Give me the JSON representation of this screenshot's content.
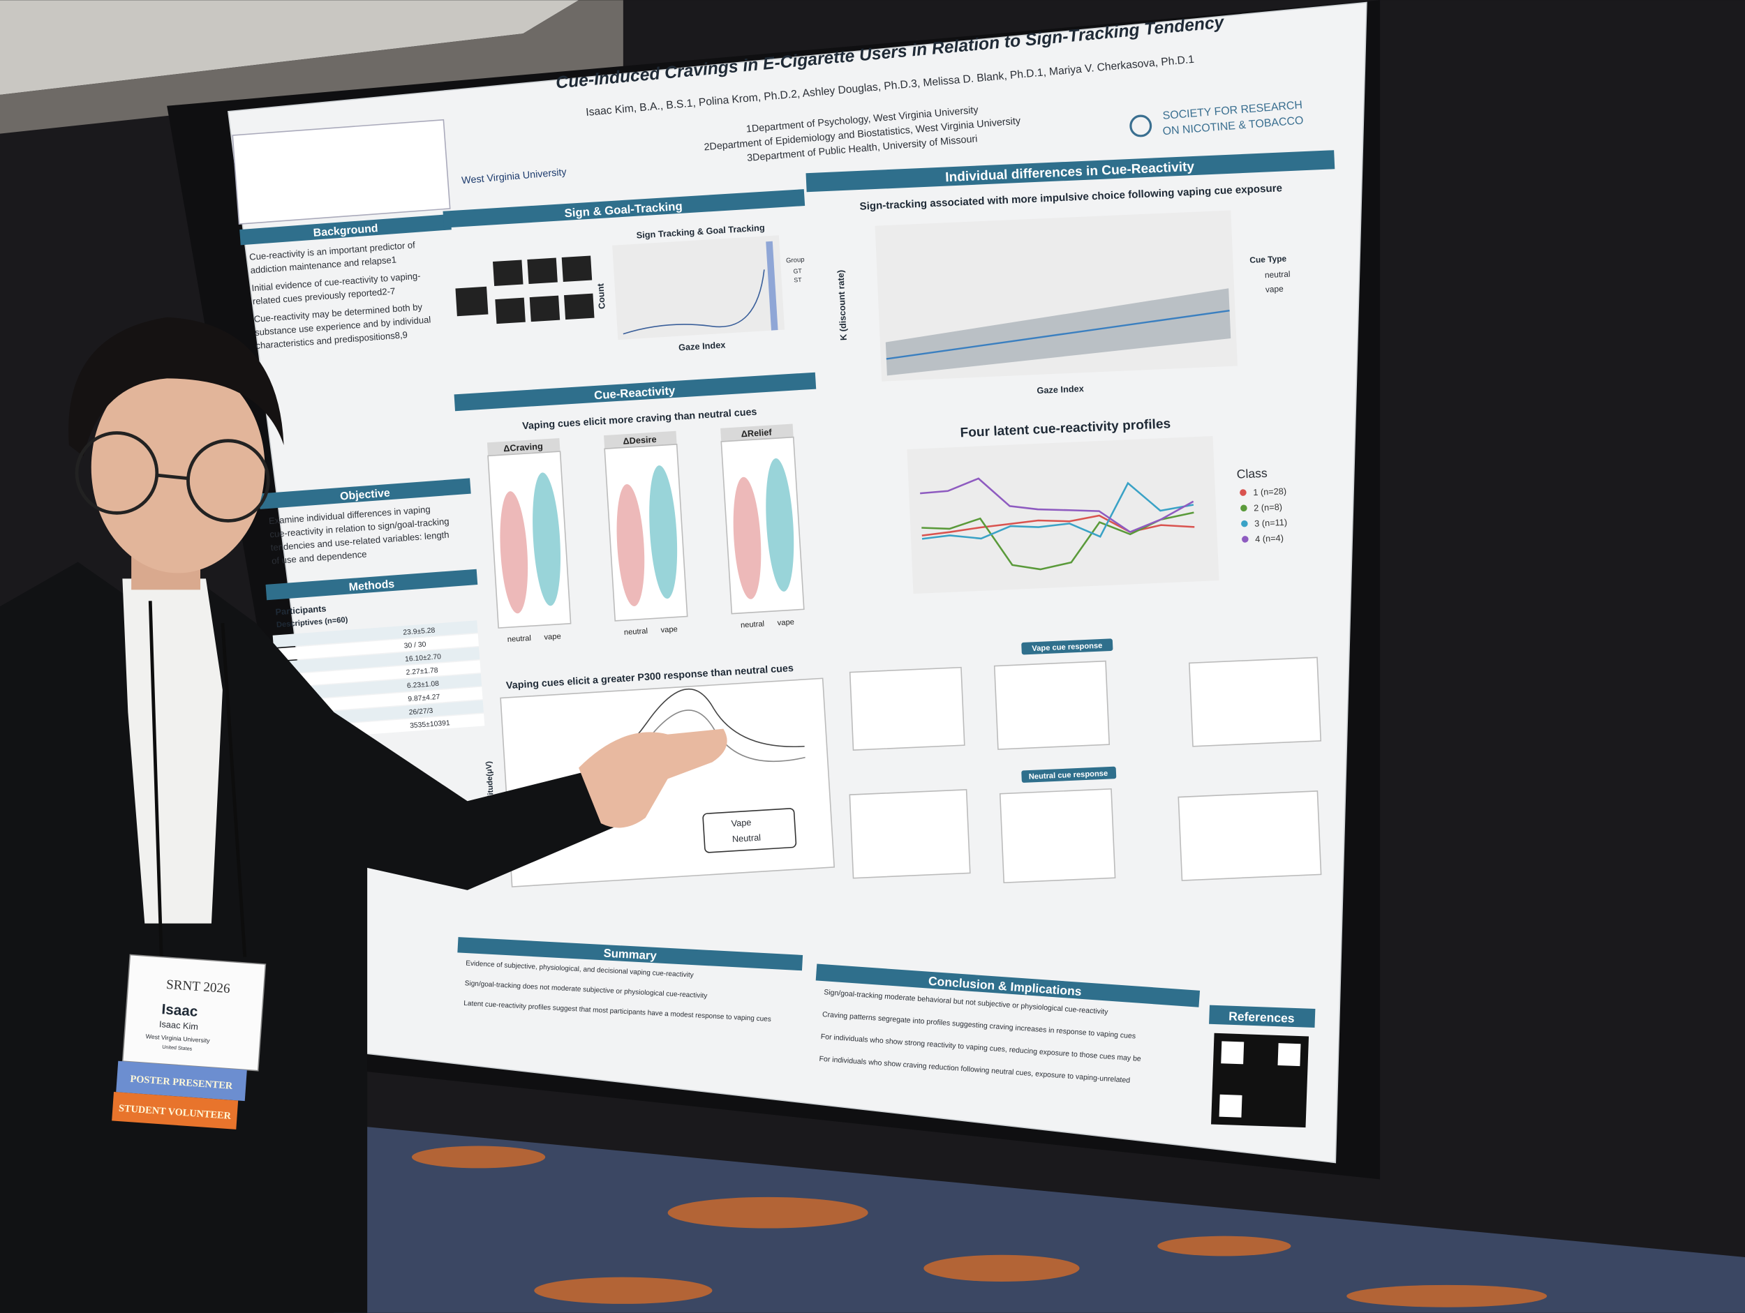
{
  "poster": {
    "title": "Cue-Induced Cravings in E-Cigarette Users in Relation to Sign-Tracking Tendency",
    "authors": "Isaac Kim, B.A., B.S.1, Polina Krom, Ph.D.2, Ashley Douglas, Ph.D.3, Melissa D. Blank, Ph.D.1, Mariya V. Cherkasova, Ph.D.1",
    "affiliations": [
      "1Department of Psychology, West Virginia University",
      "2Department of Epidemiology and Biostatistics, West Virginia University",
      "3Department of Public Health, University of Missouri"
    ],
    "left_logo": "West Virginia University",
    "right_logo": [
      "SOCIETY FOR RESEARCH",
      "ON NICOTINE & TOBACCO"
    ],
    "background": {
      "header": "Background",
      "bullets": [
        "Cue-reactivity is an important predictor of",
        "addiction maintenance and relapse1",
        "Initial evidence of cue-reactivity to vaping-",
        "related cues previously reported2-7",
        "Cue-reactivity may be determined both by",
        "substance use experience and by individual",
        "characteristics and predispositions8,9"
      ]
    },
    "objective": {
      "header": "Objective",
      "lines": [
        "Examine individual differences in vaping",
        "cue-reactivity in relation to sign/goal-tracking",
        "tendencies and use-related variables: length",
        "of use and dependence"
      ]
    },
    "methods": {
      "header": "Methods",
      "participants": "Participants",
      "descriptives": "Descriptives (n=60)",
      "stats": [
        "23.9±5.28",
        "30 / 30",
        "16.10±2.70",
        "2.27±1.78",
        "6.23±1.08",
        "9.87±4.27",
        "26/27/3",
        "3535±10391"
      ]
    },
    "sign_tracking": {
      "header": "Sign & Goal-Tracking",
      "chart_title": "Sign Tracking & Goal Tracking",
      "x_label": "Gaze Index",
      "y_label": "Count",
      "legend_title": "Group",
      "legend": [
        "GT",
        "ST"
      ]
    },
    "cue_reactivity": {
      "header": "Cue-Reactivity",
      "subtitle": "Vaping cues elicit more craving than neutral cues",
      "panels": [
        "ΔCraving",
        "ΔDesire",
        "ΔRelief"
      ],
      "x_labels": [
        "neutral",
        "vape"
      ],
      "p300_title": "Vaping cues elicit a greater P300 response than neutral cues",
      "p300_y": "Amplitude(μV)",
      "p300_legend": [
        "Vape",
        "Neutral"
      ]
    },
    "individual": {
      "header": "Individual differences in Cue-Reactivity",
      "subtitle": "Sign-tracking associated with more impulsive choice following vaping cue exposure",
      "x_label": "Gaze Index",
      "y_label": "K (discount rate)",
      "legend_title": "Cue Type",
      "legend": [
        "neutral",
        "vape"
      ],
      "profiles_title": "Four latent cue-reactivity profiles",
      "class_title": "Class",
      "classes": [
        "1 (n=28)",
        "2 (n=8)",
        "3 (n=11)",
        "4 (n=4)"
      ],
      "vape_response": "Vape cue response",
      "neutral_response": "Neutral cue response"
    },
    "summary": {
      "header": "Summary",
      "lines": [
        "Evidence of subjective, physiological, and decisional vaping cue-reactivity",
        "Sign/goal-tracking does not moderate subjective or physiological cue-reactivity",
        "Latent cue-reactivity profiles suggest that most participants have a modest response to vaping cues"
      ]
    },
    "conclusion": {
      "header": "Conclusion & Implications",
      "lines": [
        "Sign/goal-tracking moderate behavioral but not subjective or physiological cue-reactivity",
        "Craving patterns segregate into profiles suggesting craving increases in response to vaping cues",
        "For individuals who show strong reactivity to vaping cues, reducing exposure to those cues may be",
        "For individuals who show craving reduction following neutral cues, exposure to vaping-unrelated"
      ]
    },
    "references": "References"
  },
  "badge": {
    "event": "SRNT 2026",
    "name": "Isaac",
    "full_name": "Isaac Kim",
    "org": "West Virginia University",
    "country": "United States",
    "ribbons": [
      "POSTER PRESENTER",
      "STUDENT VOLUNTEER"
    ]
  }
}
